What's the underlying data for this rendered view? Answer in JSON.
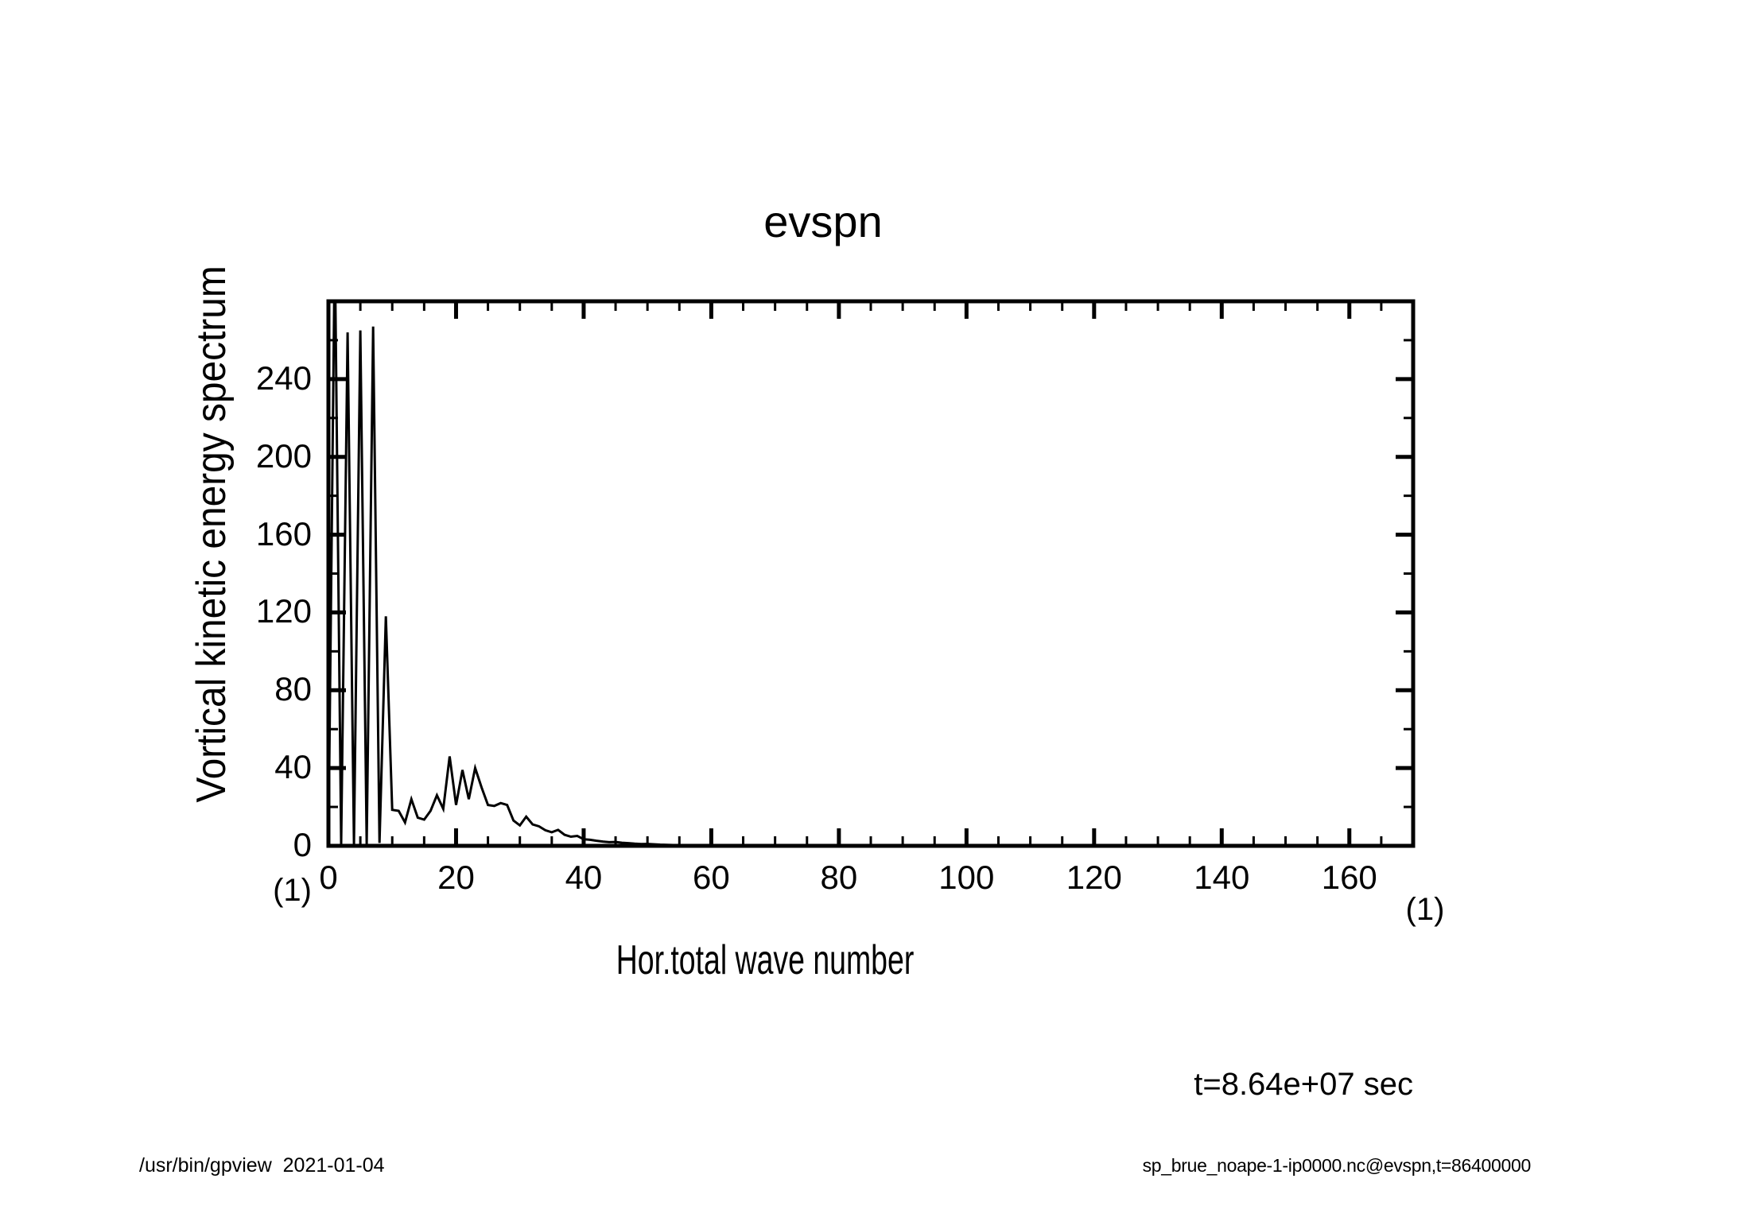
{
  "title": "evspn",
  "axes": {
    "x": {
      "label": "Hor.total wave number",
      "unit": "(1)",
      "min": 0,
      "max": 170,
      "major_step": 20,
      "minor_step": 5,
      "tick_labels": [
        0,
        20,
        40,
        60,
        80,
        100,
        120,
        140,
        160
      ]
    },
    "y": {
      "label": "Vortical kinetic energy spectrum",
      "unit": "(1)",
      "min": 0,
      "max": 280,
      "major_step": 40,
      "minor_step": 20,
      "tick_labels": [
        0,
        40,
        80,
        120,
        160,
        200,
        240
      ]
    }
  },
  "annotations": {
    "time_label": "t=8.64e+07 sec"
  },
  "footer": {
    "left": "/usr/bin/gpview  2021-01-04",
    "right": "sp_brue_noape-1-ip0000.nc@evspn,t=86400000"
  },
  "colors": {
    "foreground": "#000000",
    "background": "#ffffff"
  },
  "chart_data": {
    "type": "line",
    "title": "evspn",
    "xlabel": "Hor.total wave number",
    "ylabel": "Vortical kinetic energy spectrum",
    "xlim": [
      0,
      170
    ],
    "ylim": [
      0,
      280
    ],
    "grid": false,
    "legend": "none",
    "line_color": "#000000",
    "note": "spike at wave number 1 exceeds the y-axis range and is clipped at the plot top",
    "x": [
      0,
      1,
      2,
      3,
      4,
      5,
      6,
      7,
      8,
      9,
      10,
      11,
      12,
      13,
      14,
      15,
      16,
      17,
      18,
      19,
      20,
      21,
      22,
      23,
      24,
      25,
      26,
      27,
      28,
      29,
      30,
      31,
      32,
      33,
      34,
      35,
      36,
      37,
      38,
      39,
      40,
      41,
      42,
      43,
      44,
      45,
      46,
      47,
      48,
      49,
      50,
      52,
      54,
      56,
      58,
      60,
      64,
      68,
      72,
      80,
      90,
      100,
      120,
      140,
      160,
      170
    ],
    "y": [
      0.3,
      310,
      1,
      264,
      1,
      265,
      1,
      267,
      1.5,
      118,
      18.5,
      18,
      12,
      24,
      14.5,
      13.5,
      18,
      26,
      19,
      46,
      21,
      39,
      24,
      40,
      30,
      21,
      20.5,
      22,
      21,
      13,
      10.5,
      15,
      11,
      10,
      8,
      7,
      8.2,
      5.7,
      4.7,
      5.1,
      3.4,
      3.1,
      2.6,
      2.2,
      1.9,
      2.0,
      1.6,
      1.4,
      1.1,
      0.9,
      1.0,
      0.6,
      0.4,
      0.3,
      0.2,
      0.12,
      0.08,
      0.05,
      0.04,
      0.02,
      0.02,
      0.01,
      0.01,
      0.01,
      0.01,
      0.01
    ]
  }
}
